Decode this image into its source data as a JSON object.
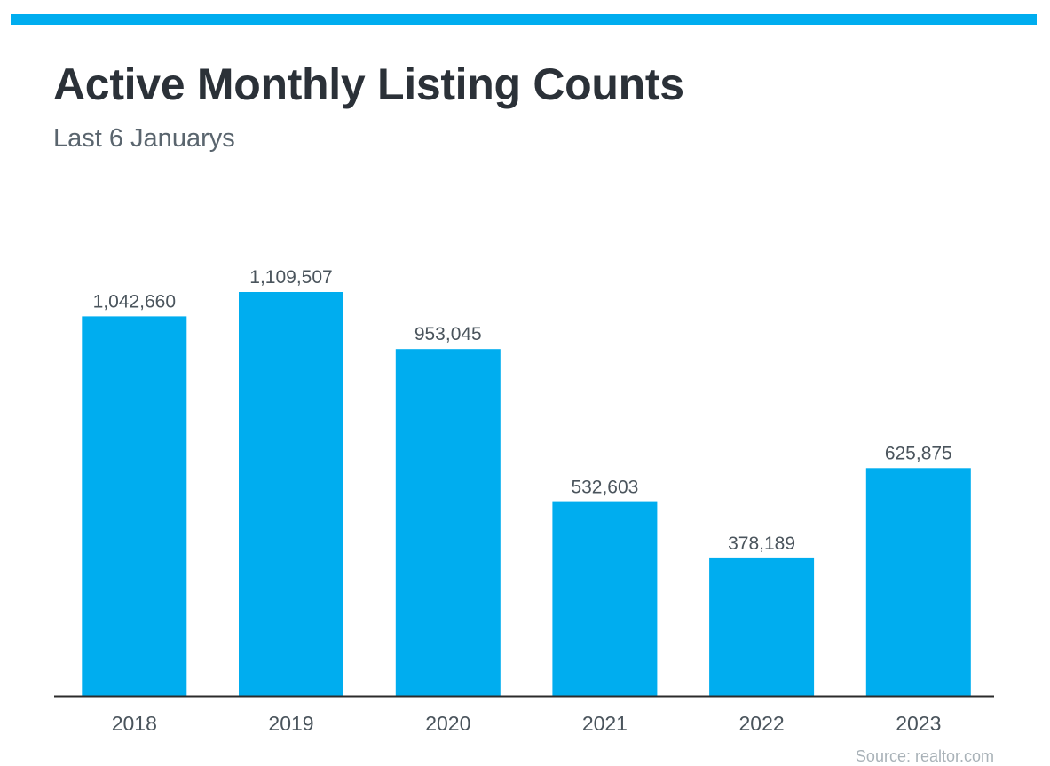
{
  "header": {
    "title": "Active Monthly Listing Counts",
    "subtitle": "Last 6 Januarys"
  },
  "footer": {
    "source": "Source: realtor.com"
  },
  "colors": {
    "accent": "#00adef",
    "bar": "#00adef",
    "axis": "#2b2b2b",
    "label": "#4a545c",
    "title": "#2b3138"
  },
  "chart_data": {
    "type": "bar",
    "title": "Active Monthly Listing Counts",
    "subtitle": "Last 6 Januarys",
    "categories": [
      "2018",
      "2019",
      "2020",
      "2021",
      "2022",
      "2023"
    ],
    "values": [
      1042660,
      1109507,
      953045,
      532603,
      378189,
      625875
    ],
    "data_labels": [
      "1,042,660",
      "1,109,507",
      "953,045",
      "532,603",
      "378,189",
      "625,875"
    ],
    "xlabel": "",
    "ylabel": "",
    "ylim": [
      0,
      1150000
    ],
    "grid": false,
    "legend": "none"
  }
}
